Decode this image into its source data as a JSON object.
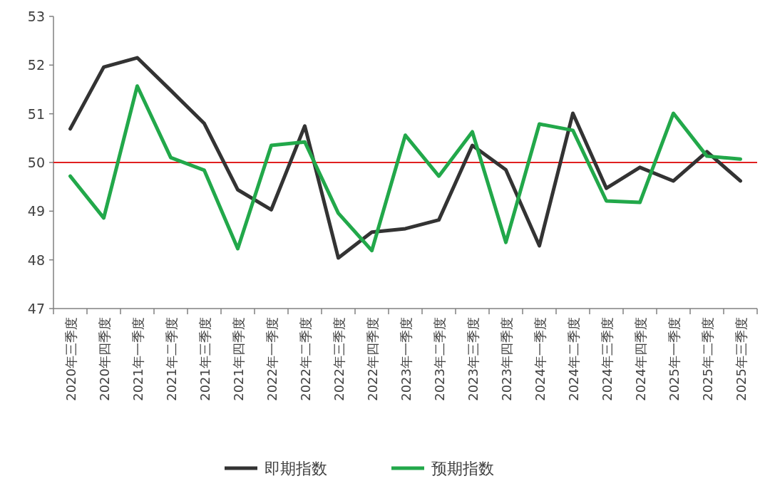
{
  "chart_data": {
    "type": "line",
    "categories": [
      "2020年三季度",
      "2020年四季度",
      "2021年一季度",
      "2021年二季度",
      "2021年三季度",
      "2021年四季度",
      "2022年一季度",
      "2022年二季度",
      "2022年三季度",
      "2022年四季度",
      "2023年一季度",
      "2023年二季度",
      "2023年三季度",
      "2023年四季度",
      "2024年一季度",
      "2024年二季度",
      "2024年三季度",
      "2024年四季度",
      "2025年一季度",
      "2025年二季度",
      "2025年三季度"
    ],
    "series": [
      {
        "name": "即期指数",
        "color": "#333333",
        "values": [
          50.69,
          51.96,
          52.15,
          51.48,
          50.8,
          49.44,
          49.03,
          50.75,
          48.04,
          48.57,
          48.64,
          48.82,
          50.35,
          49.85,
          48.29,
          51.01,
          49.47,
          49.9,
          49.62,
          50.22,
          49.62
        ]
      },
      {
        "name": "预期指数",
        "color": "#22a84a",
        "values": [
          49.72,
          48.86,
          51.57,
          50.1,
          49.84,
          48.23,
          50.35,
          50.42,
          48.96,
          48.19,
          50.56,
          49.72,
          50.63,
          48.36,
          50.79,
          50.66,
          49.21,
          49.18,
          51.01,
          50.13,
          50.07
        ]
      }
    ],
    "ylim": [
      47,
      53
    ],
    "yticks": [
      47,
      48,
      49,
      50,
      51,
      52,
      53
    ],
    "ref_lines": [
      {
        "axis": "y",
        "value": 50,
        "color": "#e02020"
      }
    ],
    "legend": "bottom",
    "grid": false,
    "marker": "none",
    "line_style": "solid"
  }
}
